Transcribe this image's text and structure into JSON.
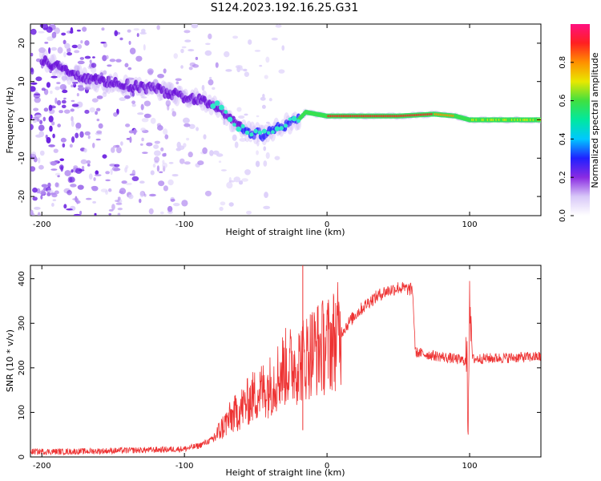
{
  "figure": {
    "title": "S124.2023.192.16.25.G31"
  },
  "chart_data": [
    {
      "type": "heatmap",
      "title": "S124.2023.192.16.25.G31",
      "xlabel": "Height of straight line (km)",
      "ylabel": "Frequency (Hz)",
      "xlim": [
        -208,
        150
      ],
      "ylim": [
        -25,
        25
      ],
      "x_ticks": [
        -200,
        -100,
        0,
        100
      ],
      "y_ticks": [
        -20,
        -10,
        0,
        10,
        20
      ],
      "colorbar": {
        "label": "Normalized spectral amplitude",
        "range": [
          0,
          1
        ],
        "ticks": [
          "0.0",
          "0.2",
          "0.4",
          "0.6",
          "0.8"
        ],
        "colormap": [
          "#ffffff",
          "#d8c8f8",
          "#8a2be2",
          "#2020ff",
          "#00c8ff",
          "#00e8a0",
          "#40e040",
          "#e8e800",
          "#ff9000",
          "#ff2020",
          "#ff1080"
        ]
      },
      "center_line_points": [
        {
          "x": -200,
          "y": 16
        },
        {
          "x": -180,
          "y": 12
        },
        {
          "x": -160,
          "y": 10
        },
        {
          "x": -140,
          "y": 9
        },
        {
          "x": -120,
          "y": 8
        },
        {
          "x": -100,
          "y": 6
        },
        {
          "x": -85,
          "y": 5
        },
        {
          "x": -75,
          "y": 3
        },
        {
          "x": -65,
          "y": -1
        },
        {
          "x": -55,
          "y": -3
        },
        {
          "x": -45,
          "y": -4
        },
        {
          "x": -35,
          "y": -2
        },
        {
          "x": -20,
          "y": 0
        },
        {
          "x": -15,
          "y": 2
        },
        {
          "x": 0,
          "y": 1
        },
        {
          "x": 50,
          "y": 1
        },
        {
          "x": 75,
          "y": 1.5
        },
        {
          "x": 90,
          "y": 1
        },
        {
          "x": 100,
          "y": 0
        },
        {
          "x": 150,
          "y": 0
        }
      ]
    },
    {
      "type": "line",
      "xlabel": "Height of straight line (km)",
      "ylabel": "SNR (10 * v/v)",
      "xlim": [
        -208,
        150
      ],
      "ylim": [
        0,
        430
      ],
      "x_ticks": [
        -200,
        -100,
        0,
        100
      ],
      "y_ticks": [
        0,
        100,
        200,
        300,
        400
      ],
      "color": "#ee3333",
      "series": [
        {
          "points": [
            {
              "x": -208,
              "y": 12
            },
            {
              "x": -180,
              "y": 12
            },
            {
              "x": -150,
              "y": 14
            },
            {
              "x": -120,
              "y": 16
            },
            {
              "x": -100,
              "y": 18
            },
            {
              "x": -90,
              "y": 25
            },
            {
              "x": -80,
              "y": 40
            },
            {
              "x": -70,
              "y": 80
            },
            {
              "x": -60,
              "y": 110
            },
            {
              "x": -50,
              "y": 140
            },
            {
              "x": -40,
              "y": 160
            },
            {
              "x": -30,
              "y": 200
            },
            {
              "x": -20,
              "y": 210
            },
            {
              "x": -10,
              "y": 240
            },
            {
              "x": 0,
              "y": 250
            },
            {
              "x": 10,
              "y": 280
            },
            {
              "x": 20,
              "y": 320
            },
            {
              "x": 30,
              "y": 350
            },
            {
              "x": 40,
              "y": 370
            },
            {
              "x": 50,
              "y": 380
            },
            {
              "x": 60,
              "y": 375
            },
            {
              "x": 62,
              "y": 235
            },
            {
              "x": 70,
              "y": 230
            },
            {
              "x": 90,
              "y": 220
            },
            {
              "x": 98,
              "y": 215
            },
            {
              "x": 99,
              "y": 90
            },
            {
              "x": 100,
              "y": 390
            },
            {
              "x": 102,
              "y": 220
            },
            {
              "x": 120,
              "y": 222
            },
            {
              "x": 150,
              "y": 225
            }
          ]
        }
      ]
    }
  ]
}
